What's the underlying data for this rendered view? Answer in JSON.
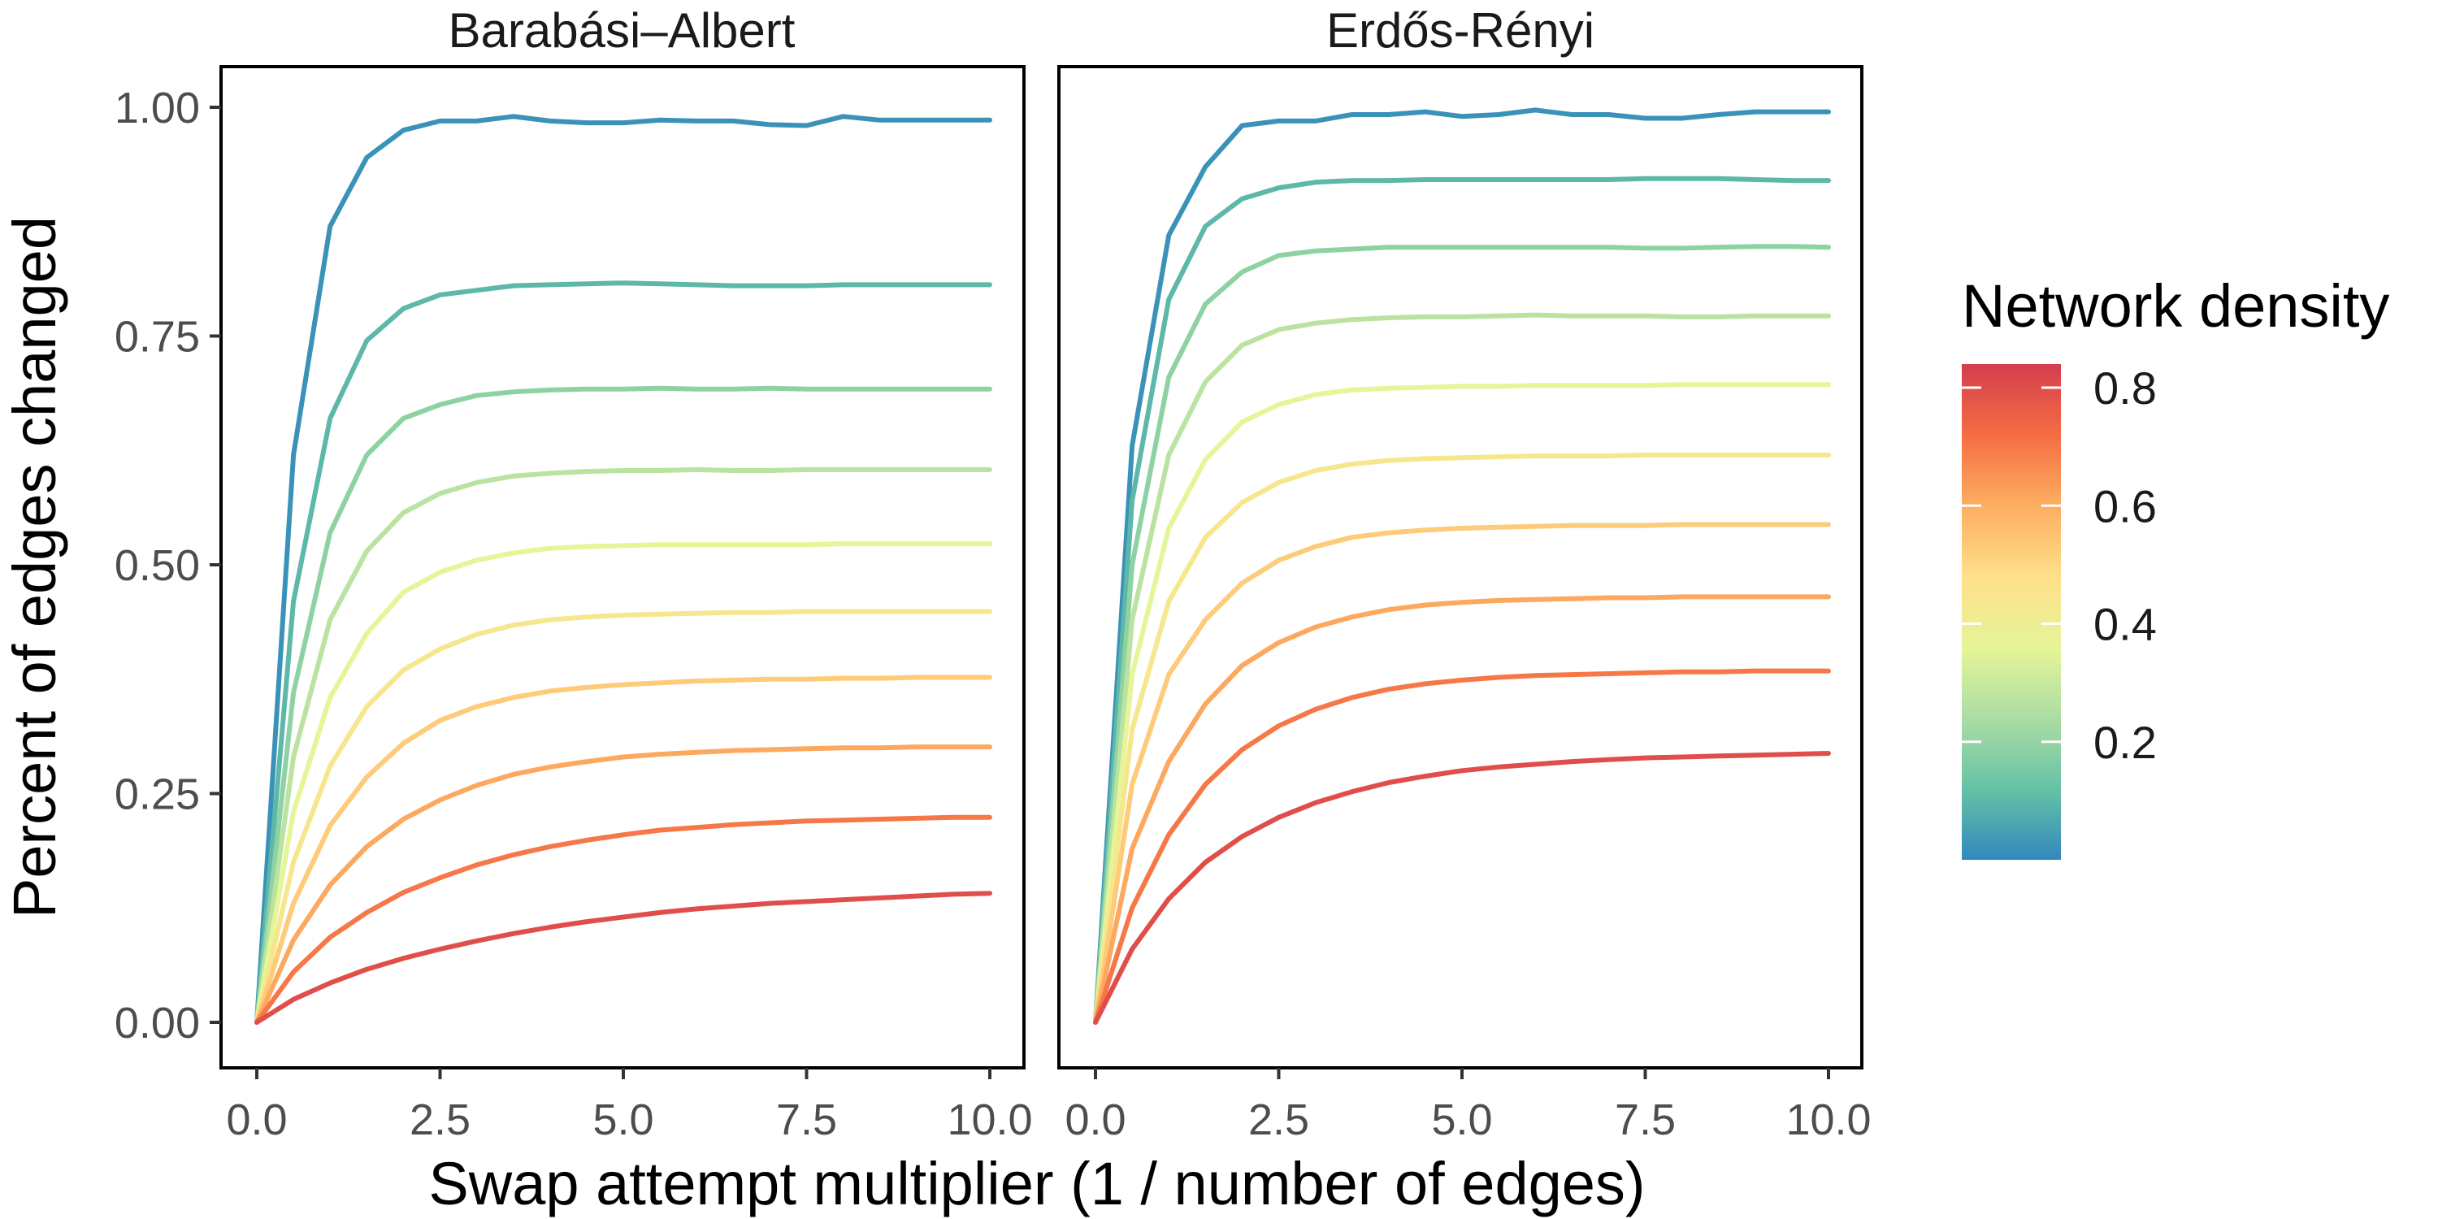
{
  "chart_data": {
    "type": "line",
    "ylabel": "Percent of edges changed",
    "xlabel": "Swap attempt multiplier (1 / number of edges)",
    "xlim": [
      0,
      10
    ],
    "ylim": [
      0,
      1
    ],
    "x_ticks": [
      "0.0",
      "2.5",
      "5.0",
      "7.5",
      "10.0"
    ],
    "y_ticks": [
      "0.00",
      "0.25",
      "0.50",
      "0.75",
      "1.00"
    ],
    "grid": false,
    "legend": {
      "title": "Network density",
      "type": "colorbar",
      "position": "right",
      "range": [
        0,
        0.84
      ],
      "ticks": [
        "0.8",
        "0.6",
        "0.4",
        "0.2"
      ],
      "tick_values": [
        0.8,
        0.6,
        0.4,
        0.2
      ],
      "colors": [
        "#3288bd",
        "#66c2a5",
        "#abdda4",
        "#e6f598",
        "#fee08b",
        "#fdae61",
        "#f46d43",
        "#d53e4f"
      ]
    },
    "x": [
      0,
      0.5,
      1,
      1.5,
      2,
      2.5,
      3,
      3.5,
      4,
      4.5,
      5,
      5.5,
      6,
      6.5,
      7,
      7.5,
      8,
      8.5,
      9,
      9.5,
      10
    ],
    "panels": [
      {
        "title": "Barabási–Albert",
        "series": [
          {
            "density": 0.02,
            "values": [
              0,
              0.62,
              0.87,
              0.945,
              0.975,
              0.985,
              0.985,
              0.99,
              0.985,
              0.983,
              0.983,
              0.986,
              0.985,
              0.985,
              0.981,
              0.98,
              0.99,
              0.986,
              0.986,
              0.986,
              0.986
            ]
          },
          {
            "density": 0.1,
            "values": [
              0,
              0.46,
              0.66,
              0.745,
              0.78,
              0.795,
              0.8,
              0.805,
              0.806,
              0.807,
              0.808,
              0.807,
              0.806,
              0.805,
              0.805,
              0.805,
              0.806,
              0.806,
              0.806,
              0.806,
              0.806
            ]
          },
          {
            "density": 0.19,
            "values": [
              0,
              0.36,
              0.535,
              0.62,
              0.66,
              0.675,
              0.685,
              0.689,
              0.691,
              0.692,
              0.692,
              0.693,
              0.692,
              0.692,
              0.693,
              0.692,
              0.692,
              0.692,
              0.692,
              0.692,
              0.692
            ]
          },
          {
            "density": 0.27,
            "values": [
              0,
              0.29,
              0.44,
              0.515,
              0.557,
              0.578,
              0.59,
              0.597,
              0.6,
              0.602,
              0.603,
              0.603,
              0.604,
              0.603,
              0.603,
              0.604,
              0.604,
              0.604,
              0.604,
              0.604,
              0.604
            ]
          },
          {
            "density": 0.36,
            "values": [
              0,
              0.23,
              0.355,
              0.425,
              0.47,
              0.492,
              0.505,
              0.513,
              0.518,
              0.52,
              0.521,
              0.522,
              0.522,
              0.522,
              0.522,
              0.522,
              0.523,
              0.523,
              0.523,
              0.523,
              0.523
            ]
          },
          {
            "density": 0.44,
            "values": [
              0,
              0.175,
              0.28,
              0.345,
              0.385,
              0.408,
              0.424,
              0.434,
              0.44,
              0.443,
              0.445,
              0.446,
              0.447,
              0.448,
              0.448,
              0.449,
              0.449,
              0.449,
              0.449,
              0.449,
              0.449
            ]
          },
          {
            "density": 0.53,
            "values": [
              0,
              0.13,
              0.215,
              0.268,
              0.305,
              0.33,
              0.345,
              0.355,
              0.362,
              0.366,
              0.369,
              0.371,
              0.373,
              0.374,
              0.375,
              0.375,
              0.376,
              0.376,
              0.377,
              0.377,
              0.377
            ]
          },
          {
            "density": 0.61,
            "values": [
              0,
              0.09,
              0.15,
              0.192,
              0.222,
              0.243,
              0.259,
              0.271,
              0.279,
              0.285,
              0.29,
              0.293,
              0.295,
              0.297,
              0.298,
              0.299,
              0.3,
              0.3,
              0.301,
              0.301,
              0.301
            ]
          },
          {
            "density": 0.7,
            "values": [
              0,
              0.055,
              0.093,
              0.12,
              0.142,
              0.158,
              0.172,
              0.183,
              0.192,
              0.199,
              0.205,
              0.21,
              0.213,
              0.216,
              0.218,
              0.22,
              0.221,
              0.222,
              0.223,
              0.224,
              0.224
            ]
          },
          {
            "density": 0.8,
            "values": [
              0,
              0.025,
              0.043,
              0.058,
              0.07,
              0.08,
              0.089,
              0.097,
              0.104,
              0.11,
              0.115,
              0.12,
              0.124,
              0.127,
              0.13,
              0.132,
              0.134,
              0.136,
              0.138,
              0.14,
              0.141
            ]
          }
        ]
      },
      {
        "title": "Erdős-Rényi",
        "series": [
          {
            "density": 0.02,
            "values": [
              0,
              0.63,
              0.86,
              0.935,
              0.98,
              0.985,
              0.985,
              0.992,
              0.992,
              0.995,
              0.99,
              0.992,
              0.997,
              0.992,
              0.992,
              0.988,
              0.988,
              0.992,
              0.995,
              0.995,
              0.995
            ]
          },
          {
            "density": 0.1,
            "values": [
              0,
              0.57,
              0.79,
              0.87,
              0.9,
              0.912,
              0.918,
              0.92,
              0.92,
              0.921,
              0.921,
              0.921,
              0.921,
              0.921,
              0.921,
              0.922,
              0.922,
              0.922,
              0.921,
              0.92,
              0.92
            ]
          },
          {
            "density": 0.19,
            "values": [
              0,
              0.5,
              0.705,
              0.785,
              0.82,
              0.838,
              0.843,
              0.845,
              0.847,
              0.847,
              0.847,
              0.847,
              0.847,
              0.847,
              0.847,
              0.846,
              0.846,
              0.847,
              0.848,
              0.848,
              0.847
            ]
          },
          {
            "density": 0.27,
            "values": [
              0,
              0.44,
              0.62,
              0.7,
              0.74,
              0.757,
              0.764,
              0.768,
              0.77,
              0.771,
              0.771,
              0.772,
              0.773,
              0.772,
              0.772,
              0.772,
              0.771,
              0.771,
              0.772,
              0.772,
              0.772
            ]
          },
          {
            "density": 0.36,
            "values": [
              0,
              0.38,
              0.54,
              0.615,
              0.656,
              0.675,
              0.686,
              0.691,
              0.693,
              0.694,
              0.695,
              0.695,
              0.696,
              0.696,
              0.696,
              0.696,
              0.697,
              0.697,
              0.697,
              0.697,
              0.697
            ]
          },
          {
            "density": 0.44,
            "values": [
              0,
              0.32,
              0.46,
              0.53,
              0.568,
              0.59,
              0.603,
              0.61,
              0.614,
              0.616,
              0.617,
              0.618,
              0.619,
              0.619,
              0.619,
              0.62,
              0.62,
              0.62,
              0.62,
              0.62,
              0.62
            ]
          },
          {
            "density": 0.53,
            "values": [
              0,
              0.26,
              0.38,
              0.44,
              0.48,
              0.505,
              0.52,
              0.53,
              0.535,
              0.538,
              0.54,
              0.541,
              0.542,
              0.543,
              0.543,
              0.543,
              0.544,
              0.544,
              0.544,
              0.544,
              0.544
            ]
          },
          {
            "density": 0.61,
            "values": [
              0,
              0.19,
              0.285,
              0.348,
              0.39,
              0.415,
              0.432,
              0.443,
              0.451,
              0.456,
              0.459,
              0.461,
              0.462,
              0.463,
              0.464,
              0.464,
              0.465,
              0.465,
              0.465,
              0.465,
              0.465
            ]
          },
          {
            "density": 0.7,
            "values": [
              0,
              0.125,
              0.205,
              0.26,
              0.298,
              0.324,
              0.342,
              0.355,
              0.364,
              0.37,
              0.374,
              0.377,
              0.379,
              0.38,
              0.381,
              0.382,
              0.383,
              0.383,
              0.384,
              0.384,
              0.384
            ]
          },
          {
            "density": 0.8,
            "values": [
              0,
              0.08,
              0.135,
              0.175,
              0.203,
              0.224,
              0.24,
              0.252,
              0.262,
              0.269,
              0.275,
              0.279,
              0.282,
              0.285,
              0.287,
              0.289,
              0.29,
              0.291,
              0.292,
              0.293,
              0.294
            ]
          }
        ]
      }
    ]
  }
}
